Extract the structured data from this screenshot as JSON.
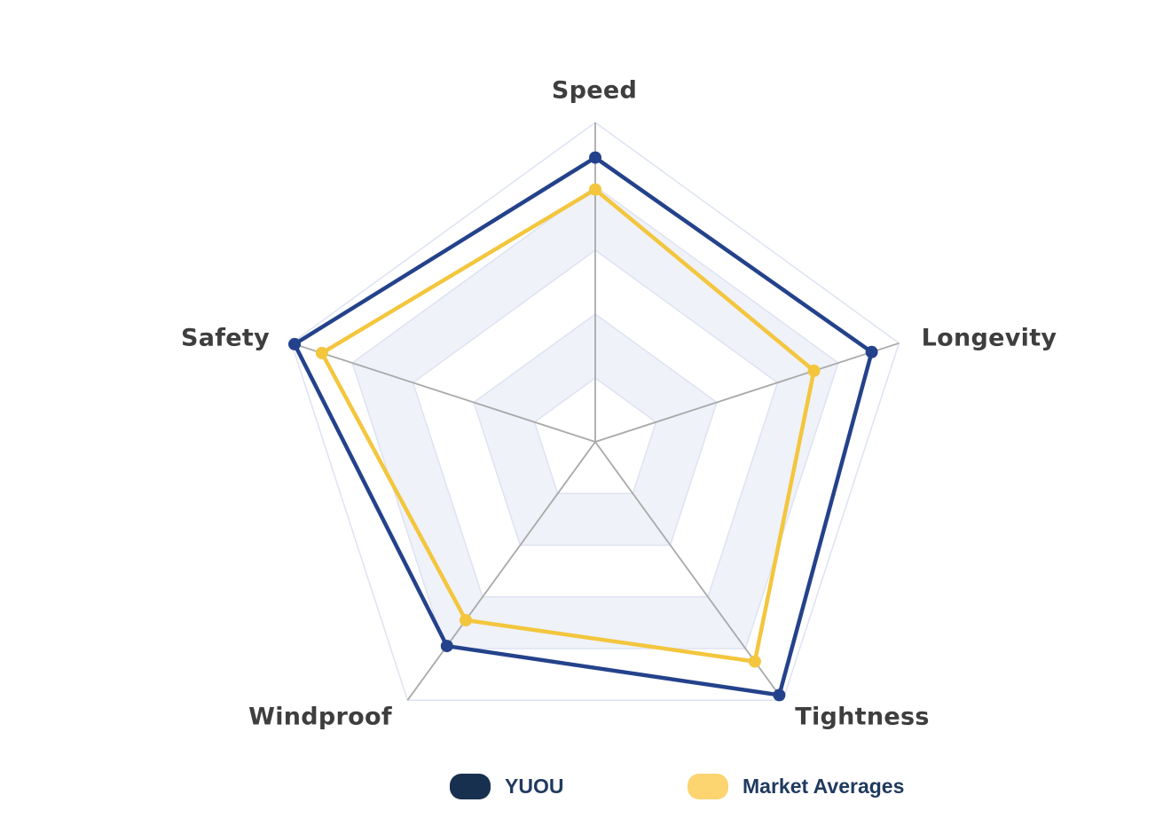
{
  "chart_data": {
    "type": "radar",
    "axes": [
      "Speed",
      "Longevity",
      "Tightness",
      "Windproof",
      "Safety"
    ],
    "value_range": [
      0,
      10
    ],
    "ring_count": 5,
    "series": [
      {
        "name": "YUOU",
        "line_color": "#24428b",
        "legend_color": "#18304f",
        "values": [
          8.9,
          9.1,
          9.8,
          7.9,
          9.9
        ]
      },
      {
        "name": "Market Averages",
        "line_color": "#f3c63e",
        "legend_color": "#fcd470",
        "values": [
          7.9,
          7.2,
          8.5,
          6.9,
          9.0
        ]
      }
    ],
    "legend_position": "bottom",
    "grid": {
      "ring_fill_odd": "#ffffff",
      "ring_fill_even": "#eff2f9",
      "ring_stroke": "#dde3f2",
      "spoke_color": "#a9a9a9"
    },
    "label_color": "#3e3e3e",
    "legend_text_color": "#1f3a5f"
  }
}
